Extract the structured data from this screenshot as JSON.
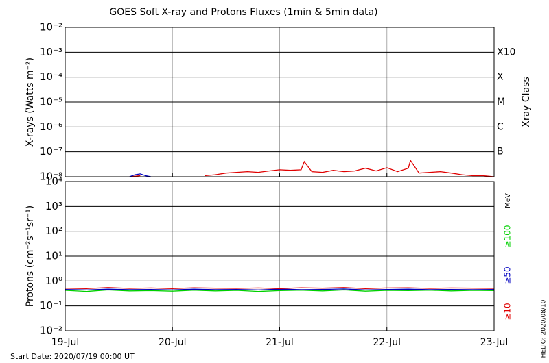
{
  "chart_data": [
    {
      "type": "line",
      "title": "GOES Soft X-ray and Protons Fluxes   (1min & 5min data)",
      "ylabel": "X-rays (Watts m⁻²)",
      "y2label": "Xray Class",
      "log_scale": true,
      "grid": true,
      "xlim": [
        0,
        4
      ],
      "xticks": [
        0,
        1,
        2,
        3,
        4
      ],
      "ylim": [
        1e-08,
        0.01
      ],
      "yticks": [
        {
          "value": 1e-08,
          "label": "10⁻⁸"
        },
        {
          "value": 1e-07,
          "label": "10⁻⁷"
        },
        {
          "value": 1e-06,
          "label": "10⁻⁶"
        },
        {
          "value": 1e-05,
          "label": "10⁻⁵"
        },
        {
          "value": 0.0001,
          "label": "10⁻⁴"
        },
        {
          "value": 0.001,
          "label": "10⁻³"
        },
        {
          "value": 0.01,
          "label": "10⁻²"
        }
      ],
      "y2lim": [
        1e-08,
        0.01
      ],
      "y2ticks": [
        {
          "value": 1e-07,
          "label": "B"
        },
        {
          "value": 1e-06,
          "label": "C"
        },
        {
          "value": 1e-05,
          "label": "M"
        },
        {
          "value": 0.0001,
          "label": "X"
        },
        {
          "value": 0.001,
          "label": "X10"
        }
      ],
      "series": [
        {
          "color": "#e00000",
          "x": [
            0.6,
            0.7,
            0.8,
            1.3,
            1.4,
            1.5,
            1.6,
            1.7,
            1.8,
            1.9,
            2.0,
            2.1,
            2.2,
            2.23,
            2.3,
            2.4,
            2.5,
            2.6,
            2.7,
            2.8,
            2.9,
            3.0,
            3.1,
            3.2,
            3.22,
            3.3,
            3.4,
            3.5,
            3.6,
            3.7,
            3.8,
            3.9,
            4.0
          ],
          "values": [
            1e-08,
            1.1e-08,
            null,
            1.1e-08,
            1.2e-08,
            1.4e-08,
            1.5e-08,
            1.6e-08,
            1.5e-08,
            1.7e-08,
            1.9e-08,
            1.8e-08,
            1.9e-08,
            4e-08,
            1.6e-08,
            1.5e-08,
            1.8e-08,
            1.6e-08,
            1.7e-08,
            2.2e-08,
            1.7e-08,
            2.3e-08,
            1.6e-08,
            2.2e-08,
            4.5e-08,
            1.4e-08,
            1.5e-08,
            1.6e-08,
            1.4e-08,
            1.2e-08,
            1.1e-08,
            1.1e-08,
            1e-08
          ]
        },
        {
          "color": "#0000c0",
          "x": [
            0.6,
            0.65,
            0.7,
            0.75,
            0.8
          ],
          "values": [
            1e-08,
            1.2e-08,
            1.3e-08,
            1.1e-08,
            1e-08
          ]
        }
      ]
    },
    {
      "type": "line",
      "ylabel": "Protons (cm⁻²s⁻¹sr⁻¹)",
      "log_scale": true,
      "grid": true,
      "legend_title": "MeV",
      "threshold": 10,
      "note": "Start Date: 2020/07/19 00:00 UT",
      "credit": "HELIO: 2020/08/10",
      "xlim": [
        0,
        4
      ],
      "xticks": [
        {
          "value": 0,
          "label": "19-Jul"
        },
        {
          "value": 1,
          "label": "20-Jul"
        },
        {
          "value": 2,
          "label": "21-Jul"
        },
        {
          "value": 3,
          "label": "22-Jul"
        },
        {
          "value": 4,
          "label": "23-Jul"
        }
      ],
      "ylim": [
        0.01,
        10000
      ],
      "yticks": [
        {
          "value": 0.01,
          "label": "10⁻²"
        },
        {
          "value": 0.1,
          "label": "10⁻¹"
        },
        {
          "value": 1,
          "label": "10⁰"
        },
        {
          "value": 10,
          "label": "10¹"
        },
        {
          "value": 100,
          "label": "10²"
        },
        {
          "value": 1000,
          "label": "10³"
        },
        {
          "value": 10000,
          "label": "10⁴"
        }
      ],
      "series": [
        {
          "name": "≥100",
          "color": "#00d000",
          "x": [
            0,
            0.2,
            0.4,
            0.6,
            0.8,
            1.0,
            1.2,
            1.4,
            1.6,
            1.8,
            2.0,
            2.2,
            2.4,
            2.6,
            2.8,
            3.0,
            3.2,
            3.4,
            3.6,
            3.8,
            4.0
          ],
          "values": [
            0.42,
            0.38,
            0.44,
            0.4,
            0.41,
            0.39,
            0.43,
            0.4,
            0.42,
            0.38,
            0.41,
            0.43,
            0.4,
            0.44,
            0.39,
            0.42,
            0.41,
            0.43,
            0.4,
            0.42,
            0.41
          ]
        },
        {
          "name": "≥50",
          "color": "#0000c0",
          "x": [
            0,
            0.2,
            0.4,
            0.6,
            0.8,
            1.0,
            1.2,
            1.4,
            1.6,
            1.8,
            2.0,
            2.2,
            2.4,
            2.6,
            2.8,
            3.0,
            3.2,
            3.4,
            3.6,
            3.8,
            4.0
          ],
          "values": [
            0.46,
            0.44,
            0.47,
            0.45,
            0.46,
            0.44,
            0.47,
            0.45,
            0.46,
            0.44,
            0.47,
            0.45,
            0.46,
            0.48,
            0.44,
            0.46,
            0.47,
            0.45,
            0.46,
            0.45,
            0.46
          ]
        },
        {
          "name": "≥10",
          "color": "#e00000",
          "x": [
            0,
            0.2,
            0.4,
            0.6,
            0.8,
            1.0,
            1.2,
            1.4,
            1.6,
            1.8,
            2.0,
            2.2,
            2.4,
            2.6,
            2.8,
            3.0,
            3.2,
            3.4,
            3.6,
            3.8,
            4.0
          ],
          "values": [
            0.52,
            0.5,
            0.55,
            0.51,
            0.53,
            0.5,
            0.54,
            0.52,
            0.51,
            0.53,
            0.5,
            0.54,
            0.52,
            0.55,
            0.5,
            0.53,
            0.54,
            0.51,
            0.53,
            0.52,
            0.51
          ]
        }
      ]
    }
  ]
}
